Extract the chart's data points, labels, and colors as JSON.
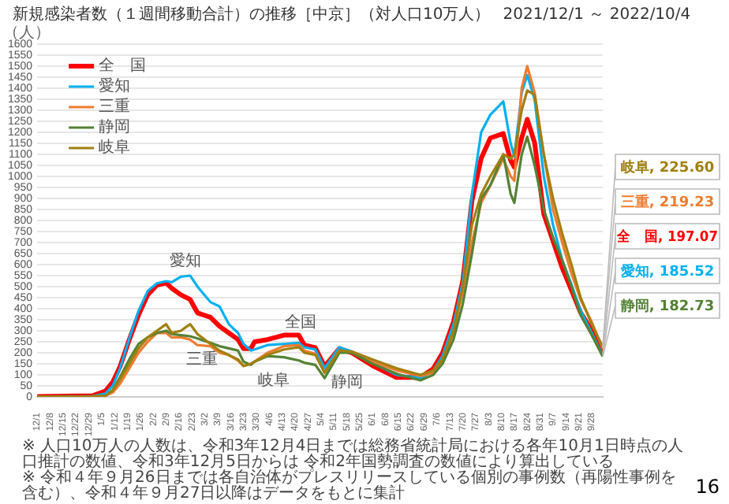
{
  "chart_data": {
    "type": "line",
    "title": "新規感染者数（１週間移動合計）の推移［中京］（対人口10万人）",
    "subtitle": "2021/12/1 ～ 2022/10/4",
    "ylabel": "（人）",
    "x": [
      "2021-12-01",
      "2021-12-31",
      "2022-01-07",
      "2022-01-11",
      "2022-01-15",
      "2022-01-20",
      "2022-01-25",
      "2022-01-30",
      "2022-02-04",
      "2022-02-09",
      "2022-02-12",
      "2022-02-17",
      "2022-02-22",
      "2022-02-26",
      "2022-03-05",
      "2022-03-10",
      "2022-03-15",
      "2022-03-20",
      "2022-03-23",
      "2022-03-27",
      "2022-03-29",
      "2022-04-05",
      "2022-04-14",
      "2022-04-22",
      "2022-04-25",
      "2022-05-01",
      "2022-05-06",
      "2022-05-14",
      "2022-05-21",
      "2022-06-01",
      "2022-06-14",
      "2022-06-27",
      "2022-07-04",
      "2022-07-09",
      "2022-07-15",
      "2022-07-20",
      "2022-07-25",
      "2022-07-30",
      "2022-08-04",
      "2022-08-11",
      "2022-08-15",
      "2022-08-17",
      "2022-08-21",
      "2022-08-24",
      "2022-08-28",
      "2022-09-02",
      "2022-09-07",
      "2022-09-12",
      "2022-09-17",
      "2022-09-22",
      "2022-09-28",
      "2022-10-04"
    ],
    "series": [
      {
        "name": "全　国",
        "color": "#ff0000",
        "values": [
          2,
          5,
          26,
          67,
          138,
          260,
          371,
          463,
          507,
          517,
          493,
          463,
          442,
          381,
          361,
          320,
          290,
          260,
          219,
          219,
          250,
          260,
          280,
          280,
          235,
          223,
          138,
          219,
          199,
          142,
          88,
          88,
          128,
          199,
          341,
          524,
          890,
          1082,
          1174,
          1194,
          1072,
          1042,
          1174,
          1259,
          1153,
          829,
          707,
          585,
          484,
          382,
          301,
          197.07
        ],
        "value_labels": [
          null,
          null,
          null,
          null,
          null,
          null,
          null,
          null,
          null,
          null,
          null,
          null,
          null,
          null,
          null,
          null,
          null,
          null,
          null,
          null,
          null,
          null,
          null,
          null,
          null,
          null,
          null,
          null,
          null,
          null,
          null,
          null,
          null,
          null,
          null,
          null,
          null,
          null,
          null,
          null,
          null,
          null,
          null,
          null,
          null,
          null,
          null,
          null,
          null,
          null,
          null,
          "全　国, 197.07"
        ]
      },
      {
        "name": "愛知",
        "color": "#00b0f0",
        "values": [
          1,
          3,
          15,
          50,
          130,
          265,
          390,
          480,
          515,
          525,
          520,
          545,
          550,
          500,
          430,
          410,
          330,
          290,
          240,
          210,
          215,
          235,
          240,
          245,
          225,
          215,
          130,
          225,
          205,
          155,
          100,
          85,
          118,
          185,
          330,
          520,
          920,
          1200,
          1280,
          1340,
          1150,
          1090,
          1380,
          1460,
          1350,
          1000,
          780,
          620,
          510,
          390,
          290,
          185.52
        ],
        "value_labels": [
          null,
          null,
          null,
          null,
          null,
          null,
          null,
          null,
          null,
          null,
          null,
          null,
          null,
          null,
          null,
          null,
          null,
          null,
          null,
          null,
          null,
          null,
          null,
          null,
          null,
          null,
          null,
          null,
          null,
          null,
          null,
          null,
          null,
          null,
          null,
          null,
          null,
          null,
          null,
          null,
          null,
          null,
          null,
          null,
          null,
          null,
          null,
          null,
          null,
          null,
          null,
          "愛知, 185.52"
        ]
      },
      {
        "name": "三重",
        "color": "#ed7d31",
        "values": [
          1,
          2,
          5,
          20,
          60,
          130,
          200,
          250,
          290,
          290,
          270,
          270,
          260,
          235,
          230,
          200,
          190,
          165,
          140,
          150,
          160,
          200,
          230,
          235,
          210,
          195,
          110,
          210,
          200,
          160,
          120,
          95,
          110,
          160,
          290,
          480,
          700,
          880,
          960,
          1080,
          1000,
          980,
          1400,
          1500,
          1380,
          1100,
          850,
          700,
          560,
          440,
          340,
          219.23
        ],
        "value_labels": [
          null,
          null,
          null,
          null,
          null,
          null,
          null,
          null,
          null,
          null,
          null,
          null,
          null,
          null,
          null,
          null,
          null,
          null,
          null,
          null,
          null,
          null,
          null,
          null,
          null,
          null,
          null,
          null,
          null,
          null,
          null,
          null,
          null,
          null,
          null,
          null,
          null,
          null,
          null,
          null,
          null,
          null,
          null,
          null,
          null,
          null,
          null,
          null,
          null,
          null,
          null,
          "三重, 219.23"
        ]
      },
      {
        "name": "静岡",
        "color": "#548235",
        "values": [
          1,
          2,
          5,
          30,
          90,
          170,
          240,
          270,
          290,
          300,
          285,
          280,
          275,
          265,
          245,
          230,
          220,
          210,
          160,
          145,
          160,
          185,
          180,
          165,
          155,
          145,
          85,
          200,
          200,
          150,
          105,
          75,
          100,
          150,
          260,
          420,
          650,
          900,
          960,
          1100,
          920,
          880,
          1100,
          1180,
          1050,
          850,
          720,
          620,
          500,
          370,
          280,
          182.73
        ],
        "value_labels": [
          null,
          null,
          null,
          null,
          null,
          null,
          null,
          null,
          null,
          null,
          null,
          null,
          null,
          null,
          null,
          null,
          null,
          null,
          null,
          null,
          null,
          null,
          null,
          null,
          null,
          null,
          null,
          null,
          null,
          null,
          null,
          null,
          null,
          null,
          null,
          null,
          null,
          null,
          null,
          null,
          null,
          null,
          null,
          null,
          null,
          null,
          null,
          null,
          null,
          null,
          null,
          "静岡, 182.73"
        ]
      },
      {
        "name": "岐阜",
        "color": "#a08010",
        "values": [
          1,
          2,
          5,
          30,
          80,
          150,
          220,
          270,
          300,
          330,
          290,
          300,
          330,
          285,
          240,
          210,
          190,
          170,
          140,
          150,
          160,
          190,
          215,
          225,
          200,
          190,
          110,
          210,
          205,
          170,
          130,
          100,
          120,
          170,
          300,
          500,
          780,
          920,
          1000,
          1100,
          1080,
          1100,
          1300,
          1390,
          1370,
          1100,
          900,
          740,
          600,
          450,
          330,
          225.6
        ],
        "value_labels": [
          null,
          null,
          null,
          null,
          null,
          null,
          null,
          null,
          null,
          null,
          null,
          null,
          null,
          null,
          null,
          null,
          null,
          null,
          null,
          null,
          null,
          null,
          null,
          null,
          null,
          null,
          null,
          null,
          null,
          null,
          null,
          null,
          null,
          null,
          null,
          null,
          null,
          null,
          null,
          null,
          null,
          null,
          null,
          null,
          null,
          null,
          null,
          null,
          null,
          null,
          null,
          "岐阜, 225.60"
        ]
      }
    ],
    "xlim": [
      "2021-12-01",
      "2022-10-04"
    ],
    "ylim": [
      0,
      1600
    ],
    "xticks": [
      {
        "value": "2021-12-01",
        "label": "12/1"
      },
      {
        "value": "2021-12-08",
        "label": "12/8"
      },
      {
        "value": "2021-12-15",
        "label": "12/15"
      },
      {
        "value": "2021-12-22",
        "label": "12/22"
      },
      {
        "value": "2021-12-29",
        "label": "12/29"
      },
      {
        "value": "2022-01-05",
        "label": "1/5"
      },
      {
        "value": "2022-01-12",
        "label": "1/12"
      },
      {
        "value": "2022-01-19",
        "label": "1/19"
      },
      {
        "value": "2022-01-26",
        "label": "1/26"
      },
      {
        "value": "2022-02-02",
        "label": "2/2"
      },
      {
        "value": "2022-02-09",
        "label": "2/9"
      },
      {
        "value": "2022-02-16",
        "label": "2/16"
      },
      {
        "value": "2022-02-23",
        "label": "2/23"
      },
      {
        "value": "2022-03-02",
        "label": "3/2"
      },
      {
        "value": "2022-03-09",
        "label": "3/9"
      },
      {
        "value": "2022-03-16",
        "label": "3/16"
      },
      {
        "value": "2022-03-23",
        "label": "3/23"
      },
      {
        "value": "2022-03-30",
        "label": "3/30"
      },
      {
        "value": "2022-04-06",
        "label": "4/6"
      },
      {
        "value": "2022-04-13",
        "label": "4/13"
      },
      {
        "value": "2022-04-20",
        "label": "4/20"
      },
      {
        "value": "2022-04-27",
        "label": "4/27"
      },
      {
        "value": "2022-05-04",
        "label": "5/4"
      },
      {
        "value": "2022-05-11",
        "label": "5/11"
      },
      {
        "value": "2022-05-18",
        "label": "5/18"
      },
      {
        "value": "2022-05-25",
        "label": "5/25"
      },
      {
        "value": "2022-06-01",
        "label": "6/1"
      },
      {
        "value": "2022-06-08",
        "label": "6/8"
      },
      {
        "value": "2022-06-15",
        "label": "6/15"
      },
      {
        "value": "2022-06-22",
        "label": "6/22"
      },
      {
        "value": "2022-06-29",
        "label": "6/29"
      },
      {
        "value": "2022-07-06",
        "label": "7/6"
      },
      {
        "value": "2022-07-13",
        "label": "7/13"
      },
      {
        "value": "2022-07-20",
        "label": "7/20"
      },
      {
        "value": "2022-07-27",
        "label": "7/27"
      },
      {
        "value": "2022-08-03",
        "label": "8/3"
      },
      {
        "value": "2022-08-10",
        "label": "8/10"
      },
      {
        "value": "2022-08-17",
        "label": "8/17"
      },
      {
        "value": "2022-08-24",
        "label": "8/24"
      },
      {
        "value": "2022-08-31",
        "label": "8/31"
      },
      {
        "value": "2022-09-07",
        "label": "9/7"
      },
      {
        "value": "2022-09-14",
        "label": "9/14"
      },
      {
        "value": "2022-09-21",
        "label": "9/21"
      },
      {
        "value": "2022-09-28",
        "label": "9/28"
      }
    ],
    "yticks": [
      0,
      50,
      100,
      150,
      200,
      250,
      300,
      350,
      400,
      450,
      500,
      550,
      600,
      650,
      700,
      750,
      800,
      850,
      900,
      950,
      1000,
      1050,
      1100,
      1150,
      1200,
      1250,
      1300,
      1350,
      1400,
      1450,
      1500,
      1550,
      1600
    ],
    "grid": "y",
    "legend": "top left",
    "marker": "none",
    "line_style": "solid",
    "annotations": [
      "愛知",
      "全国",
      "三重",
      "岐阜",
      "静岡",
      "※ 人口10万人の人数は、令和3年12月4日までは総務省統計局における各年10月1日時点の人口推計の数値、令和3年12月5日からは 令和2年国勢調査の数値により算出している",
      "※ 令和４年９月26日までは各自治体がプレスリリースしている個別の事例数（再陽性事例を含む）、令和４年９月27日以降はデータをもとに集計",
      "16"
    ]
  }
}
